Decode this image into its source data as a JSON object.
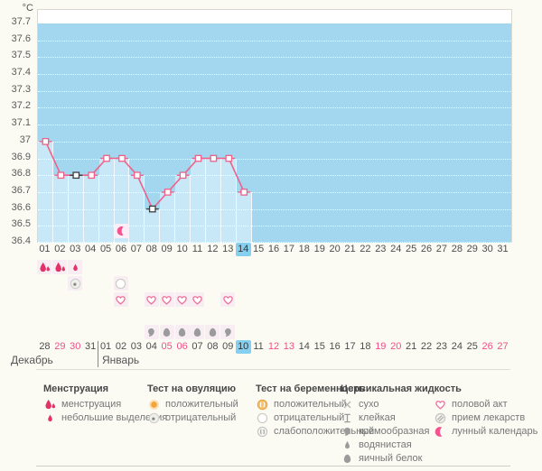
{
  "chart_data": {
    "type": "line",
    "y_unit": "°C",
    "ylim": [
      36.4,
      37.7
    ],
    "yticks": [
      "37.7",
      "37.6",
      "37.5",
      "37.4",
      "37.3",
      "37.2",
      "37.1",
      "37",
      "36.9",
      "36.8",
      "36.7",
      "36.6",
      "36.5",
      "36.4"
    ],
    "x_categories": [
      "01",
      "02",
      "03",
      "04",
      "05",
      "06",
      "07",
      "08",
      "09",
      "10",
      "11",
      "12",
      "13",
      "14",
      "15",
      "16",
      "17",
      "18",
      "19",
      "20",
      "21",
      "22",
      "23",
      "24",
      "25",
      "26",
      "27",
      "28",
      "29",
      "30",
      "31"
    ],
    "points": [
      {
        "day": 1,
        "value": 37.0
      },
      {
        "day": 2,
        "value": 36.8
      },
      {
        "day": 3,
        "value": 36.8
      },
      {
        "day": 4,
        "value": 36.8
      },
      {
        "day": 5,
        "value": 36.9
      },
      {
        "day": 6,
        "value": 36.9
      },
      {
        "day": 7,
        "value": 36.8
      },
      {
        "day": 8,
        "value": 36.6
      },
      {
        "day": 9,
        "value": 36.7
      },
      {
        "day": 10,
        "value": 36.8
      },
      {
        "day": 11,
        "value": 36.9
      },
      {
        "day": 12,
        "value": 36.9
      },
      {
        "day": 13,
        "value": 36.9
      },
      {
        "day": 14,
        "value": 36.7
      }
    ],
    "special_marker_days": [
      3,
      8
    ],
    "annotations": [
      {
        "day": 6,
        "icon": "moon",
        "meaning": "лунный календарь"
      }
    ],
    "area_fill": true,
    "grid": "horizontal-dotted"
  },
  "calendar": {
    "cycle_days": [
      "01",
      "02",
      "03",
      "04",
      "05",
      "06",
      "07",
      "08",
      "09",
      "10",
      "11",
      "12",
      "13",
      "14",
      "15",
      "16",
      "17",
      "18",
      "19",
      "20",
      "21",
      "22",
      "23",
      "24",
      "25",
      "26",
      "27",
      "28",
      "29",
      "30",
      "31"
    ],
    "today_cycle_index": 13,
    "dates": [
      "28",
      "29",
      "30",
      "31",
      "01",
      "02",
      "03",
      "04",
      "05",
      "06",
      "07",
      "08",
      "09",
      "10",
      "11",
      "12",
      "13",
      "14",
      "15",
      "16",
      "17",
      "18",
      "19",
      "20",
      "21",
      "22",
      "23",
      "24",
      "25",
      "26",
      "27"
    ],
    "weekend_date_indices": [
      1,
      2,
      8,
      9,
      15,
      16,
      22,
      23,
      29,
      30
    ],
    "today_date_index": 13,
    "months": [
      {
        "label": "Декабрь"
      },
      {
        "label": "Январь"
      }
    ],
    "month_divider_after_index": 3
  },
  "rows": [
    {
      "name": "menstruation",
      "events": [
        {
          "day": 1,
          "icon": "drop-heavy"
        },
        {
          "day": 2,
          "icon": "drop-heavy"
        },
        {
          "day": 3,
          "icon": "drop-light"
        }
      ]
    },
    {
      "name": "tests",
      "events": [
        {
          "day": 3,
          "icon": "ovulation-negative"
        },
        {
          "day": 6,
          "icon": "pregnancy-negative"
        }
      ]
    },
    {
      "name": "intercourse",
      "events": [
        {
          "day": 6,
          "icon": "heart"
        },
        {
          "day": 8,
          "icon": "heart"
        },
        {
          "day": 9,
          "icon": "heart"
        },
        {
          "day": 10,
          "icon": "heart"
        },
        {
          "day": 11,
          "icon": "heart"
        },
        {
          "day": 13,
          "icon": "heart"
        }
      ]
    },
    {
      "name": "medication",
      "events": []
    },
    {
      "name": "cervical-fluid",
      "events": [
        {
          "day": 8,
          "icon": "creamy"
        },
        {
          "day": 9,
          "icon": "eggwhite"
        },
        {
          "day": 10,
          "icon": "eggwhite"
        },
        {
          "day": 11,
          "icon": "eggwhite"
        },
        {
          "day": 12,
          "icon": "eggwhite"
        },
        {
          "day": 13,
          "icon": "creamy"
        }
      ]
    }
  ],
  "legend": {
    "columns": [
      {
        "header": "Менструация",
        "items": [
          {
            "icon": "drop-heavy",
            "label": "менструация"
          },
          {
            "icon": "drop-light",
            "label": "небольшие выделения"
          }
        ]
      },
      {
        "header": "Тест на овуляцию",
        "items": [
          {
            "icon": "ovulation-positive",
            "label": "положительный"
          },
          {
            "icon": "ovulation-negative",
            "label": "отрицательный"
          }
        ]
      },
      {
        "header": "Тест на беременность",
        "items": [
          {
            "icon": "pregnancy-positive",
            "label": "положительный"
          },
          {
            "icon": "pregnancy-negative",
            "label": "отрицательный"
          },
          {
            "icon": "pregnancy-weak-positive",
            "label": "слабоположительный"
          }
        ]
      },
      {
        "header": "Цервикальная жидкость",
        "items": [
          {
            "icon": "dry",
            "label": "сухо"
          },
          {
            "icon": "sticky",
            "label": "клейкая"
          },
          {
            "icon": "creamy",
            "label": "кремообразная"
          },
          {
            "icon": "watery",
            "label": "водянистая"
          },
          {
            "icon": "eggwhite",
            "label": "яичный белок"
          }
        ]
      },
      {
        "header": "",
        "items": [
          {
            "icon": "heart",
            "label": "половой акт"
          },
          {
            "icon": "pills",
            "label": "прием лекарств"
          },
          {
            "icon": "moon",
            "label": "лунный календарь"
          }
        ]
      }
    ]
  },
  "colors": {
    "chart_bg": "#a2d7ef",
    "area_fill": "#c8e7f7",
    "line": "#ee6189",
    "marker_special": "#3d3d3d",
    "today_highlight": "#85d0f0",
    "weekend_text": "#ef4f87",
    "drop": "#e23267",
    "heart": "#f06f97",
    "gray_icon": "#9b9b9b",
    "amber": "#f3a33b",
    "moon": "#f2548e"
  }
}
